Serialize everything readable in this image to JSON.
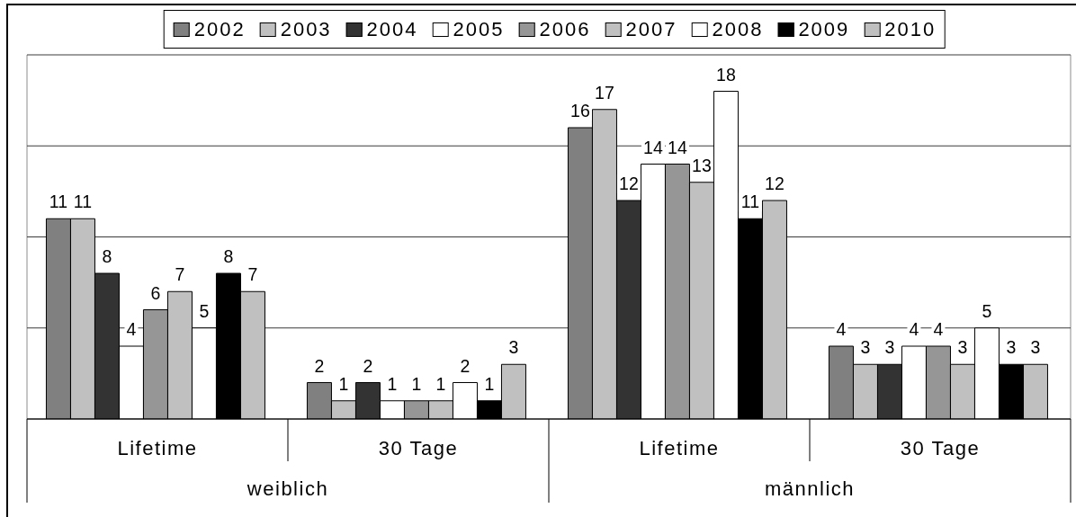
{
  "chart_data": {
    "type": "bar",
    "categories": [
      "Lifetime",
      "30 Tage",
      "Lifetime",
      "30 Tage"
    ],
    "annotations": [
      "weiblich",
      "männlich"
    ],
    "series": [
      {
        "name": "2002",
        "color": "#808080",
        "values": [
          11,
          2,
          16,
          4
        ]
      },
      {
        "name": "2003",
        "color": "#c0c0c0",
        "values": [
          11,
          1,
          17,
          3
        ]
      },
      {
        "name": "2004",
        "color": "#333333",
        "values": [
          8,
          2,
          12,
          3
        ]
      },
      {
        "name": "2005",
        "color": "#ffffff",
        "values": [
          4,
          1,
          14,
          4
        ]
      },
      {
        "name": "2006",
        "color": "#969696",
        "values": [
          6,
          1,
          14,
          4
        ]
      },
      {
        "name": "2007",
        "color": "#c0c0c0",
        "values": [
          7,
          1,
          13,
          3
        ]
      },
      {
        "name": "2008",
        "color": "#ffffff",
        "values": [
          5,
          2,
          18,
          5
        ]
      },
      {
        "name": "2009",
        "color": "#000000",
        "values": [
          8,
          1,
          11,
          3
        ]
      },
      {
        "name": "2010",
        "color": "#c0c0c0",
        "values": [
          7,
          3,
          12,
          3
        ]
      }
    ],
    "ylim": [
      0,
      20
    ],
    "yticks": [
      {
        "value": 0,
        "label": null
      },
      {
        "value": 5,
        "label": null
      },
      {
        "value": 10,
        "label": null
      },
      {
        "value": 15,
        "label": null
      },
      {
        "value": 20,
        "label": null
      }
    ],
    "tick_labels": "x",
    "grid": "y",
    "legend": "top",
    "data_labels": true
  }
}
